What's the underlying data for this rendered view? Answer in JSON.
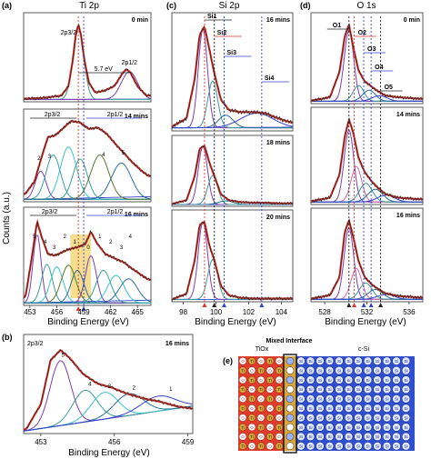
{
  "colors": {
    "data_black": "#222222",
    "fit_red": "#e0352b",
    "background_blue": "#3344cc",
    "guide_red": "#e0352b",
    "guide_blue": "#3344cc",
    "highlight": "#f3d36b",
    "tio_bg": "#e23b2b",
    "si_bg": "#2e4fd0",
    "interface_gold": "#d8a53a"
  },
  "icons": {
    "left_arrow": "arrow-left-icon",
    "right_arrow": "arrow-right-icon",
    "peak_marker": "triangle-marker-icon"
  },
  "y_axis_label": "Counts (a.u.)",
  "chart_data": [
    {
      "id": "a",
      "panel_label": "(a)",
      "title": "Ti 2p",
      "type": "line",
      "xlabel": "Binding Energy (eV)",
      "xlim": [
        452.3,
        466.5
      ],
      "xticks": [
        453,
        456,
        459,
        462,
        465
      ],
      "x_reversed": false,
      "guides": [
        {
          "x": 458.4,
          "color": "red"
        },
        {
          "x": 459.0,
          "color": "blue"
        }
      ],
      "subpanels": [
        {
          "time": "0 min",
          "ylim": [
            0,
            1.08
          ],
          "peaks_text": [
            "2p3/2",
            "2p1/2"
          ],
          "annotation": "5.7 eV",
          "spectrum": {
            "x": [
              452.5,
              454.5,
              456.5,
              457.3,
              457.8,
              458.1,
              458.4,
              458.7,
              459.1,
              459.6,
              460.3,
              461.2,
              462.4,
              463.4,
              463.8,
              464.2,
              465.0,
              466.0
            ],
            "y": [
              0.04,
              0.05,
              0.08,
              0.2,
              0.55,
              0.85,
              1.0,
              0.86,
              0.52,
              0.24,
              0.12,
              0.14,
              0.2,
              0.38,
              0.42,
              0.38,
              0.2,
              0.08
            ]
          },
          "components": [
            {
              "center": 458.4,
              "width": 0.6,
              "amplitude": 0.95,
              "color": "#3a9d9b"
            },
            {
              "center": 464.1,
              "width": 0.9,
              "amplitude": 0.36,
              "color": "#7b3fb0"
            }
          ]
        },
        {
          "time": "14 mins",
          "ylim": [
            0,
            1.08
          ],
          "peaks_text": [
            "2p3/2",
            "2p1/2"
          ],
          "numbered_components": [
            "2",
            "3",
            "4",
            "5"
          ],
          "spectrum": {
            "x": [
              452.5,
              453.5,
              454.3,
              455.0,
              455.8,
              456.6,
              457.6,
              458.6,
              459.6,
              460.5,
              461.5,
              462.5,
              463.5,
              464.5,
              465.5,
              466.2
            ],
            "y": [
              0.1,
              0.25,
              0.55,
              0.8,
              0.82,
              0.9,
              1.0,
              0.98,
              0.9,
              0.92,
              0.85,
              0.72,
              0.6,
              0.48,
              0.38,
              0.32
            ]
          },
          "components": [
            {
              "center": 454.2,
              "width": 0.6,
              "amplitude": 0.35,
              "color": "#7b3fb0"
            },
            {
              "center": 455.6,
              "width": 0.8,
              "amplitude": 0.55,
              "color": "#3a9d9b"
            },
            {
              "center": 457.3,
              "width": 0.9,
              "amplitude": 0.65,
              "color": "#3cc1c9"
            },
            {
              "center": 458.6,
              "width": 0.8,
              "amplitude": 0.5,
              "color": "#3a9d9b"
            },
            {
              "center": 460.8,
              "width": 1.0,
              "amplitude": 0.55,
              "color": "#5d7a2a"
            },
            {
              "center": 463.2,
              "width": 1.1,
              "amplitude": 0.45,
              "color": "#2b6f9e"
            }
          ]
        },
        {
          "time": "16 mins",
          "ylim": [
            0,
            1.08
          ],
          "peaks_text": [
            "2p3/2",
            "2p1/2"
          ],
          "numbered_components": [
            "5",
            "4",
            "3",
            "2",
            "1",
            "0",
            "1",
            "2",
            "3",
            "4"
          ],
          "highlight_range": [
            457.5,
            459.8
          ],
          "spectrum": {
            "x": [
              452.5,
              453.2,
              453.8,
              454.3,
              455.0,
              455.8,
              456.6,
              457.5,
              458.4,
              459.2,
              459.8,
              460.5,
              461.4,
              462.4,
              463.5,
              464.5,
              465.5,
              466.2
            ],
            "y": [
              0.1,
              0.55,
              0.98,
              0.8,
              0.6,
              0.58,
              0.62,
              0.66,
              0.68,
              0.72,
              0.86,
              0.72,
              0.6,
              0.55,
              0.5,
              0.42,
              0.35,
              0.3
            ]
          },
          "components": [
            {
              "center": 453.8,
              "width": 0.45,
              "amplitude": 0.8,
              "color": "#7b3fb0"
            },
            {
              "center": 454.9,
              "width": 0.6,
              "amplitude": 0.45,
              "color": "#3a9d9b"
            },
            {
              "center": 456.0,
              "width": 0.7,
              "amplitude": 0.42,
              "color": "#3cc1c9"
            },
            {
              "center": 457.3,
              "width": 0.8,
              "amplitude": 0.44,
              "color": "#5d7a2a"
            },
            {
              "center": 458.3,
              "width": 0.7,
              "amplitude": 0.38,
              "color": "#2b6f9e"
            },
            {
              "center": 459.8,
              "width": 0.6,
              "amplitude": 0.55,
              "color": "#7b3fb0"
            },
            {
              "center": 461.2,
              "width": 0.8,
              "amplitude": 0.38,
              "color": "#3a9d9b"
            },
            {
              "center": 462.6,
              "width": 0.9,
              "amplitude": 0.32,
              "color": "#3cc1c9"
            },
            {
              "center": 464.0,
              "width": 1.0,
              "amplitude": 0.28,
              "color": "#2b6f9e"
            }
          ]
        }
      ]
    },
    {
      "id": "c",
      "panel_label": "(c)",
      "title": "Si 2p",
      "type": "line",
      "xlabel": "Binding Energy (eV)",
      "xlim": [
        97.3,
        104.7
      ],
      "xticks": [
        98,
        100,
        102,
        104
      ],
      "guides": [
        {
          "x": 99.3,
          "color": "red"
        },
        {
          "x": 99.9,
          "color": "black"
        },
        {
          "x": 100.5,
          "color": "blue"
        },
        {
          "x": 102.8,
          "color": "blue"
        }
      ],
      "component_labels": [
        "Si1",
        "Si2",
        "Si3",
        "Si4"
      ],
      "subpanels": [
        {
          "time": "16 mins",
          "ylim": [
            0,
            1.08
          ],
          "spectrum": {
            "x": [
              97.3,
              98.2,
              98.7,
              99.0,
              99.3,
              99.6,
              99.9,
              100.3,
              100.8,
              101.5,
              102.3,
              103.0,
              103.8,
              104.6
            ],
            "y": [
              0.04,
              0.12,
              0.5,
              0.92,
              1.0,
              0.78,
              0.55,
              0.3,
              0.2,
              0.18,
              0.18,
              0.17,
              0.12,
              0.08
            ]
          },
          "components": [
            {
              "center": 99.2,
              "width": 0.28,
              "amplitude": 0.95,
              "color": "#7b3fb0"
            },
            {
              "center": 99.8,
              "width": 0.3,
              "amplitude": 0.45,
              "color": "#3a9d9b"
            },
            {
              "center": 100.6,
              "width": 0.45,
              "amplitude": 0.12,
              "color": "#2b6f9e"
            },
            {
              "center": 102.5,
              "width": 1.0,
              "amplitude": 0.14,
              "color": "#3344cc"
            }
          ]
        },
        {
          "time": "18 mins",
          "ylim": [
            0,
            1.08
          ],
          "spectrum": {
            "x": [
              97.3,
              98.2,
              98.7,
              99.0,
              99.3,
              99.6,
              99.9,
              100.3,
              100.8,
              101.5,
              102.3,
              103.0,
              103.8,
              104.6
            ],
            "y": [
              0.04,
              0.1,
              0.5,
              0.95,
              1.0,
              0.72,
              0.5,
              0.2,
              0.1,
              0.07,
              0.06,
              0.06,
              0.05,
              0.05
            ]
          },
          "components": [
            {
              "center": 99.2,
              "width": 0.28,
              "amplitude": 0.97,
              "color": "#7b3fb0"
            },
            {
              "center": 99.8,
              "width": 0.3,
              "amplitude": 0.48,
              "color": "#3a9d9b"
            },
            {
              "center": 100.6,
              "width": 0.45,
              "amplitude": 0.06,
              "color": "#2b6f9e"
            }
          ]
        },
        {
          "time": "20 mins",
          "ylim": [
            0,
            1.08
          ],
          "spectrum": {
            "x": [
              97.3,
              98.2,
              98.7,
              99.0,
              99.3,
              99.6,
              99.9,
              100.3,
              100.8,
              101.5,
              102.3,
              103.0,
              103.8,
              104.6
            ],
            "y": [
              0.03,
              0.1,
              0.52,
              0.96,
              1.0,
              0.7,
              0.52,
              0.2,
              0.08,
              0.05,
              0.04,
              0.04,
              0.04,
              0.04
            ]
          },
          "components": [
            {
              "center": 99.2,
              "width": 0.28,
              "amplitude": 0.98,
              "color": "#7b3fb0"
            },
            {
              "center": 99.8,
              "width": 0.3,
              "amplitude": 0.5,
              "color": "#3a9d9b"
            }
          ]
        }
      ]
    },
    {
      "id": "d",
      "panel_label": "(d)",
      "title": "O 1s",
      "type": "line",
      "xlabel": "Binding Energy (eV)",
      "xlim": [
        526.7,
        537.3
      ],
      "xticks": [
        528,
        532,
        536
      ],
      "guides": [
        {
          "x": 530.3,
          "color": "black"
        },
        {
          "x": 530.8,
          "color": "red"
        },
        {
          "x": 531.7,
          "color": "blue"
        },
        {
          "x": 532.4,
          "color": "blue"
        },
        {
          "x": 533.3,
          "color": "black"
        }
      ],
      "component_labels": [
        "O1",
        "O2",
        "O3",
        "O4",
        "O5"
      ],
      "subpanels": [
        {
          "time": "0 min",
          "ylim": [
            0,
            1.08
          ],
          "spectrum": {
            "x": [
              526.8,
              528.5,
              529.4,
              529.9,
              530.3,
              530.7,
              531.2,
              531.8,
              532.4,
              533.0,
              533.8,
              535.0,
              537.2
            ],
            "y": [
              0.04,
              0.08,
              0.4,
              0.85,
              1.0,
              0.72,
              0.42,
              0.28,
              0.22,
              0.16,
              0.1,
              0.08,
              0.06
            ]
          },
          "components": [
            {
              "center": 530.3,
              "width": 0.45,
              "amplitude": 0.9,
              "color": "#7b3fb0"
            },
            {
              "center": 531.2,
              "width": 0.5,
              "amplitude": 0.2,
              "color": "#3a9d9b"
            },
            {
              "center": 532.2,
              "width": 0.6,
              "amplitude": 0.14,
              "color": "#2b6f9e"
            },
            {
              "center": 533.2,
              "width": 0.7,
              "amplitude": 0.07,
              "color": "#3344cc"
            }
          ]
        },
        {
          "time": "14 mins",
          "ylim": [
            0,
            1.08
          ],
          "spectrum": {
            "x": [
              526.8,
              528.5,
              529.4,
              529.9,
              530.3,
              530.7,
              531.2,
              531.8,
              532.4,
              533.0,
              533.8,
              535.0,
              537.2
            ],
            "y": [
              0.04,
              0.08,
              0.35,
              0.8,
              1.0,
              0.85,
              0.55,
              0.38,
              0.28,
              0.2,
              0.12,
              0.08,
              0.06
            ]
          },
          "components": [
            {
              "center": 530.3,
              "width": 0.45,
              "amplitude": 0.85,
              "color": "#7b3fb0"
            },
            {
              "center": 531.0,
              "width": 0.5,
              "amplitude": 0.42,
              "color": "#d36aa6"
            },
            {
              "center": 531.9,
              "width": 0.6,
              "amplitude": 0.22,
              "color": "#3a9d9b"
            },
            {
              "center": 532.8,
              "width": 0.7,
              "amplitude": 0.15,
              "color": "#2b6f9e"
            },
            {
              "center": 533.8,
              "width": 0.8,
              "amplitude": 0.08,
              "color": "#3344cc"
            }
          ]
        },
        {
          "time": "16 mins",
          "ylim": [
            0,
            1.08
          ],
          "spectrum": {
            "x": [
              526.8,
              528.5,
              529.4,
              529.9,
              530.3,
              530.7,
              531.2,
              531.8,
              532.4,
              533.0,
              533.8,
              535.0,
              537.2
            ],
            "y": [
              0.04,
              0.08,
              0.3,
              0.85,
              1.0,
              0.8,
              0.5,
              0.3,
              0.22,
              0.16,
              0.1,
              0.07,
              0.05
            ]
          },
          "components": [
            {
              "center": 530.3,
              "width": 0.45,
              "amplitude": 0.88,
              "color": "#7b3fb0"
            },
            {
              "center": 531.0,
              "width": 0.5,
              "amplitude": 0.38,
              "color": "#d36aa6"
            },
            {
              "center": 531.9,
              "width": 0.6,
              "amplitude": 0.2,
              "color": "#3a9d9b"
            },
            {
              "center": 532.8,
              "width": 0.7,
              "amplitude": 0.12,
              "color": "#2b6f9e"
            },
            {
              "center": 533.8,
              "width": 0.8,
              "amplitude": 0.06,
              "color": "#3344cc"
            }
          ]
        }
      ]
    },
    {
      "id": "b",
      "panel_label": "(b)",
      "type": "line",
      "xlabel": "Binding Energy (eV)",
      "xlim": [
        452.3,
        459.2
      ],
      "xticks": [
        453,
        456,
        459
      ],
      "time": "16 mins",
      "peak_label": "2p3/2",
      "numbered_components": [
        "5",
        "4",
        "3",
        "2",
        "1"
      ],
      "ylim": [
        0,
        1.1
      ],
      "spectrum": {
        "x": [
          452.4,
          453.0,
          453.4,
          453.8,
          454.2,
          454.7,
          455.3,
          455.9,
          456.5,
          457.2,
          457.9,
          458.5,
          459.1
        ],
        "y": [
          0.05,
          0.35,
          0.88,
          1.0,
          0.9,
          0.72,
          0.6,
          0.55,
          0.48,
          0.42,
          0.38,
          0.33,
          0.3
        ]
      },
      "components": [
        {
          "center": 453.8,
          "width": 0.42,
          "amplitude": 0.78,
          "color": "#7b3fb0"
        },
        {
          "center": 454.8,
          "width": 0.5,
          "amplitude": 0.38,
          "color": "#3a9d9b"
        },
        {
          "center": 455.6,
          "width": 0.55,
          "amplitude": 0.32,
          "color": "#3cc1c9"
        },
        {
          "center": 456.6,
          "width": 0.6,
          "amplitude": 0.26,
          "color": "#2b6f9e"
        },
        {
          "center": 457.8,
          "width": 0.7,
          "amplitude": 0.18,
          "color": "#3344cc"
        }
      ]
    },
    {
      "id": "e",
      "panel_label": "(e)",
      "type": "diagram",
      "regions": [
        "TiOx",
        "Mixed Interface",
        "c-Si"
      ],
      "atom_labels": {
        "tio_o": "O",
        "tio_ti": "Ti",
        "si": "Si"
      }
    }
  ]
}
